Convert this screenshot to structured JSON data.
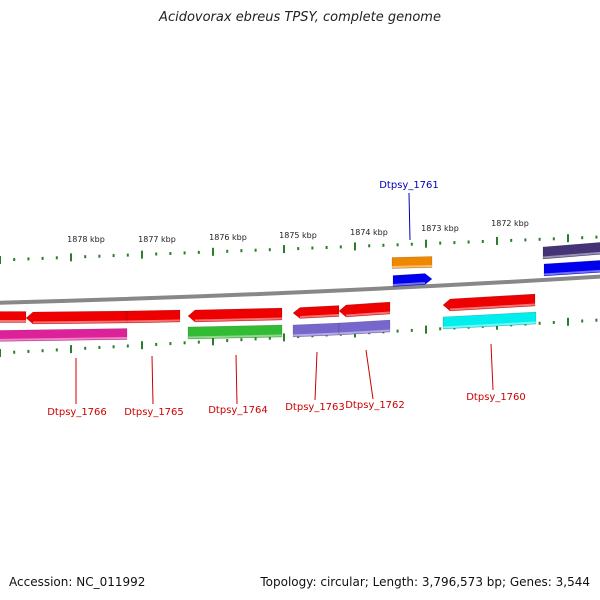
{
  "title": "Acidovorax ebreus TPSY, complete genome",
  "footer": {
    "accession": "Accession: NC_011992",
    "summary": "Topology: circular; Length: 3,796,573 bp; Genes: 3,544"
  },
  "colors": {
    "backbone": "#888888",
    "tick": "#2a7d2a",
    "label_red": "#cc0000",
    "label_blue": "#0000bb"
  },
  "scale_labels": [
    "1878 kbp",
    "1877 kbp",
    "1876 kbp",
    "1875 kbp",
    "1874 kbp",
    "1873 kbp",
    "1872 kbp"
  ],
  "gene_labels": [
    {
      "text": "Dtpsy_1761",
      "color": "#0000bb"
    },
    {
      "text": "Dtpsy_1766",
      "color": "#cc0000"
    },
    {
      "text": "Dtpsy_1765",
      "color": "#cc0000"
    },
    {
      "text": "Dtpsy_1764",
      "color": "#cc0000"
    },
    {
      "text": "Dtpsy_1763",
      "color": "#cc0000"
    },
    {
      "text": "Dtpsy_1762",
      "color": "#cc0000"
    },
    {
      "text": "Dtpsy_1760",
      "color": "#cc0000"
    }
  ],
  "features": [
    {
      "name": "gene-block-left-red",
      "color": "#ee0000"
    },
    {
      "name": "gene-block-1766-red",
      "color": "#ee0000"
    },
    {
      "name": "gene-block-1765-red",
      "color": "#ee0000"
    },
    {
      "name": "gene-block-1764-red",
      "color": "#ee0000"
    },
    {
      "name": "gene-block-1763-red",
      "color": "#ee0000"
    },
    {
      "name": "gene-block-1762-red",
      "color": "#ee0000"
    },
    {
      "name": "gene-block-1760-red",
      "color": "#ee0000"
    },
    {
      "name": "gene-block-1766-magenta",
      "color": "#dd2299"
    },
    {
      "name": "gene-block-1764-green",
      "color": "#33bb33"
    },
    {
      "name": "gene-block-1763-purple",
      "color": "#7766cc"
    },
    {
      "name": "gene-block-1762-purple",
      "color": "#7766cc"
    },
    {
      "name": "gene-block-1760-cyan",
      "color": "#00eeee"
    },
    {
      "name": "gene-block-1761-orange",
      "color": "#ee8800"
    },
    {
      "name": "gene-block-1761-blue",
      "color": "#0000ee"
    },
    {
      "name": "gene-block-right-navy",
      "color": "#443377"
    },
    {
      "name": "gene-block-right-blue",
      "color": "#0000ee"
    }
  ]
}
